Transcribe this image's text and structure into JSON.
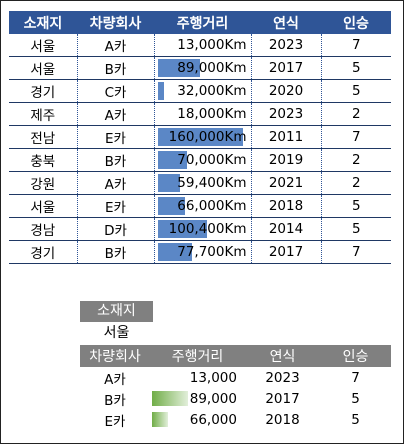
{
  "main_table": {
    "headers": [
      "소재지",
      "차량회사",
      "주행거리",
      "연식",
      "인승"
    ],
    "rows": [
      {
        "region": "서울",
        "company": "A카",
        "mileage": "13,000Km",
        "year": "2023",
        "seats": "7",
        "bar": 0.0
      },
      {
        "region": "서울",
        "company": "B카",
        "mileage": "89,000Km",
        "year": "2017",
        "seats": "5",
        "bar": 0.51
      },
      {
        "region": "경기",
        "company": "C카",
        "mileage": "32,000Km",
        "year": "2020",
        "seats": "5",
        "bar": 0.13
      },
      {
        "region": "제주",
        "company": "A카",
        "mileage": "18,000Km",
        "year": "2023",
        "seats": "2",
        "bar": 0.0
      },
      {
        "region": "전남",
        "company": "E카",
        "mileage": "160,000Km",
        "year": "2011",
        "seats": "7",
        "bar": 0.95
      },
      {
        "region": "충북",
        "company": "B카",
        "mileage": "70,000Km",
        "year": "2019",
        "seats": "2",
        "bar": 0.37
      },
      {
        "region": "강원",
        "company": "A카",
        "mileage": "59,400Km",
        "year": "2021",
        "seats": "2",
        "bar": 0.3
      },
      {
        "region": "서울",
        "company": "E카",
        "mileage": "66,000Km",
        "year": "2018",
        "seats": "5",
        "bar": 0.35
      },
      {
        "region": "경남",
        "company": "D카",
        "mileage": "100,400Km",
        "year": "2014",
        "seats": "5",
        "bar": 0.58
      },
      {
        "region": "경기",
        "company": "B카",
        "mileage": "77,700Km",
        "year": "2017",
        "seats": "7",
        "bar": 0.42
      }
    ]
  },
  "filter": {
    "label": "소재지",
    "value": "서울"
  },
  "filtered_table": {
    "headers": [
      "차량회사",
      "주행거리",
      "연식",
      "인승"
    ],
    "rows": [
      {
        "company": "A카",
        "mileage": "13,000",
        "year": "2023",
        "seats": "7",
        "bar": 0.0
      },
      {
        "company": "B카",
        "mileage": "89,000",
        "year": "2017",
        "seats": "5",
        "bar": 1.0
      },
      {
        "company": "E카",
        "mileage": "66,000",
        "year": "2018",
        "seats": "5",
        "bar": 0.45
      }
    ]
  },
  "colors": {
    "header_blue": "#2f5597",
    "databar_blue": "#5b87c6",
    "header_gray": "#808080",
    "databar_green": "#70ad47"
  }
}
